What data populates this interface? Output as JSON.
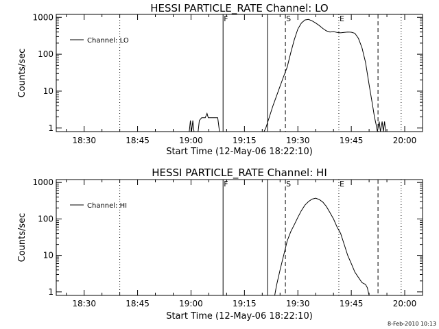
{
  "footer": {
    "timestamp": "8-Feb-2010 10:13"
  },
  "chart_data": [
    {
      "type": "line",
      "title": "HESSI PARTICLE_RATE Channel: LO",
      "xlabel": "Start Time (12-May-06 18:22:10)",
      "ylabel": "Counts/sec",
      "yscale": "log",
      "xunit": "time",
      "xlim": [
        "18:22:10",
        "20:05:00"
      ],
      "ylim": [
        0.8,
        1200
      ],
      "xticks": [
        "18:30",
        "18:45",
        "19:00",
        "19:15",
        "19:30",
        "19:45",
        "20:00"
      ],
      "yticks": [
        "1",
        "10",
        "100",
        "1000"
      ],
      "legend": {
        "placement": "top-left",
        "entries": [
          "Channel: LO"
        ]
      },
      "markers": [
        {
          "time": "18:40:00",
          "style": "dotted",
          "label": ""
        },
        {
          "time": "19:09:00",
          "style": "solid",
          "label": "F"
        },
        {
          "time": "19:21:30",
          "style": "solid",
          "label": ""
        },
        {
          "time": "19:26:30",
          "style": "dashed",
          "label": "S"
        },
        {
          "time": "19:41:30",
          "style": "dotted",
          "label": "E"
        },
        {
          "time": "19:52:30",
          "style": "dashed",
          "label": ""
        },
        {
          "time": "19:59:00",
          "style": "dotted",
          "label": ""
        }
      ],
      "series": [
        {
          "segments": [
            [
              [
                "18:59:30",
                0.8
              ],
              [
                "18:59:50",
                1.6
              ],
              [
                "19:00:10",
                0.8
              ],
              [
                "19:00:30",
                1.6
              ],
              [
                "19:00:50",
                0.8
              ]
            ],
            [
              [
                "19:02:00",
                0.8
              ],
              [
                "19:02:20",
                1.6
              ],
              [
                "19:03:00",
                1.9
              ],
              [
                "19:04:00",
                1.9
              ],
              [
                "19:04:30",
                2.5
              ],
              [
                "19:04:50",
                1.9
              ],
              [
                "19:06:00",
                1.9
              ],
              [
                "19:07:00",
                1.9
              ],
              [
                "19:07:30",
                1.9
              ],
              [
                "19:08:00",
                0.8
              ]
            ],
            [
              [
                "19:20:30",
                0.8
              ],
              [
                "19:21:00",
                1.0
              ],
              [
                "19:22:00",
                2.0
              ],
              [
                "19:23:00",
                4
              ],
              [
                "19:24:30",
                10
              ],
              [
                "19:26:00",
                25
              ],
              [
                "19:27:00",
                45
              ],
              [
                "19:28:00",
                110
              ],
              [
                "19:29:00",
                250
              ],
              [
                "19:30:00",
                480
              ],
              [
                "19:31:00",
                700
              ],
              [
                "19:32:00",
                850
              ],
              [
                "19:33:00",
                880
              ],
              [
                "19:34:00",
                800
              ],
              [
                "19:35:00",
                700
              ],
              [
                "19:36:00",
                600
              ],
              [
                "19:37:00",
                500
              ],
              [
                "19:38:00",
                430
              ],
              [
                "19:39:00",
                400
              ],
              [
                "19:40:00",
                410
              ],
              [
                "19:41:00",
                390
              ],
              [
                "19:42:00",
                380
              ],
              [
                "19:43:00",
                390
              ],
              [
                "19:44:00",
                400
              ],
              [
                "19:45:00",
                395
              ],
              [
                "19:46:00",
                370
              ],
              [
                "19:47:00",
                270
              ],
              [
                "19:48:00",
                150
              ],
              [
                "19:49:00",
                60
              ],
              [
                "19:50:00",
                15
              ],
              [
                "19:51:00",
                4
              ],
              [
                "19:51:30",
                2.0
              ],
              [
                "19:52:00",
                1.2
              ],
              [
                "19:52:20",
                0.8
              ],
              [
                "19:52:50",
                1.5
              ],
              [
                "19:53:10",
                0.8
              ],
              [
                "19:53:40",
                1.5
              ],
              [
                "19:54:00",
                0.8
              ],
              [
                "19:54:20",
                1.5
              ],
              [
                "19:54:40",
                0.8
              ]
            ]
          ]
        }
      ]
    },
    {
      "type": "line",
      "title": "HESSI PARTICLE_RATE Channel: HI",
      "xlabel": "Start Time (12-May-06 18:22:10)",
      "ylabel": "Counts/sec",
      "yscale": "log",
      "xunit": "time",
      "xlim": [
        "18:22:10",
        "20:05:00"
      ],
      "ylim": [
        0.8,
        1200
      ],
      "xticks": [
        "18:30",
        "18:45",
        "19:00",
        "19:15",
        "19:30",
        "19:45",
        "20:00"
      ],
      "yticks": [
        "1",
        "10",
        "100",
        "1000"
      ],
      "legend": {
        "placement": "top-left",
        "entries": [
          "Channel: HI"
        ]
      },
      "markers": [
        {
          "time": "18:40:00",
          "style": "dotted",
          "label": ""
        },
        {
          "time": "19:09:00",
          "style": "solid",
          "label": "F"
        },
        {
          "time": "19:21:30",
          "style": "solid",
          "label": ""
        },
        {
          "time": "19:26:30",
          "style": "dashed",
          "label": "S"
        },
        {
          "time": "19:41:30",
          "style": "dotted",
          "label": "E"
        },
        {
          "time": "19:52:30",
          "style": "dashed",
          "label": ""
        },
        {
          "time": "19:59:00",
          "style": "dotted",
          "label": ""
        }
      ],
      "series": [
        {
          "segments": [
            [
              [
                "19:23:30",
                0.8
              ],
              [
                "19:24:00",
                1.5
              ],
              [
                "19:25:00",
                4
              ],
              [
                "19:26:00",
                10
              ],
              [
                "19:27:00",
                25
              ],
              [
                "19:28:00",
                45
              ],
              [
                "19:29:00",
                70
              ],
              [
                "19:30:00",
                110
              ],
              [
                "19:31:00",
                170
              ],
              [
                "19:32:00",
                240
              ],
              [
                "19:33:00",
                300
              ],
              [
                "19:34:00",
                350
              ],
              [
                "19:35:00",
                370
              ],
              [
                "19:36:00",
                340
              ],
              [
                "19:37:00",
                290
              ],
              [
                "19:38:00",
                220
              ],
              [
                "19:39:00",
                150
              ],
              [
                "19:40:00",
                100
              ],
              [
                "19:41:00",
                60
              ],
              [
                "19:42:00",
                40
              ],
              [
                "19:43:00",
                20
              ],
              [
                "19:44:00",
                10
              ],
              [
                "19:45:00",
                6
              ],
              [
                "19:46:00",
                3.5
              ],
              [
                "19:47:00",
                2.5
              ],
              [
                "19:48:00",
                1.8
              ],
              [
                "19:49:00",
                1.6
              ],
              [
                "19:49:30",
                1.3
              ],
              [
                "19:50:00",
                0.8
              ]
            ]
          ]
        }
      ]
    }
  ]
}
